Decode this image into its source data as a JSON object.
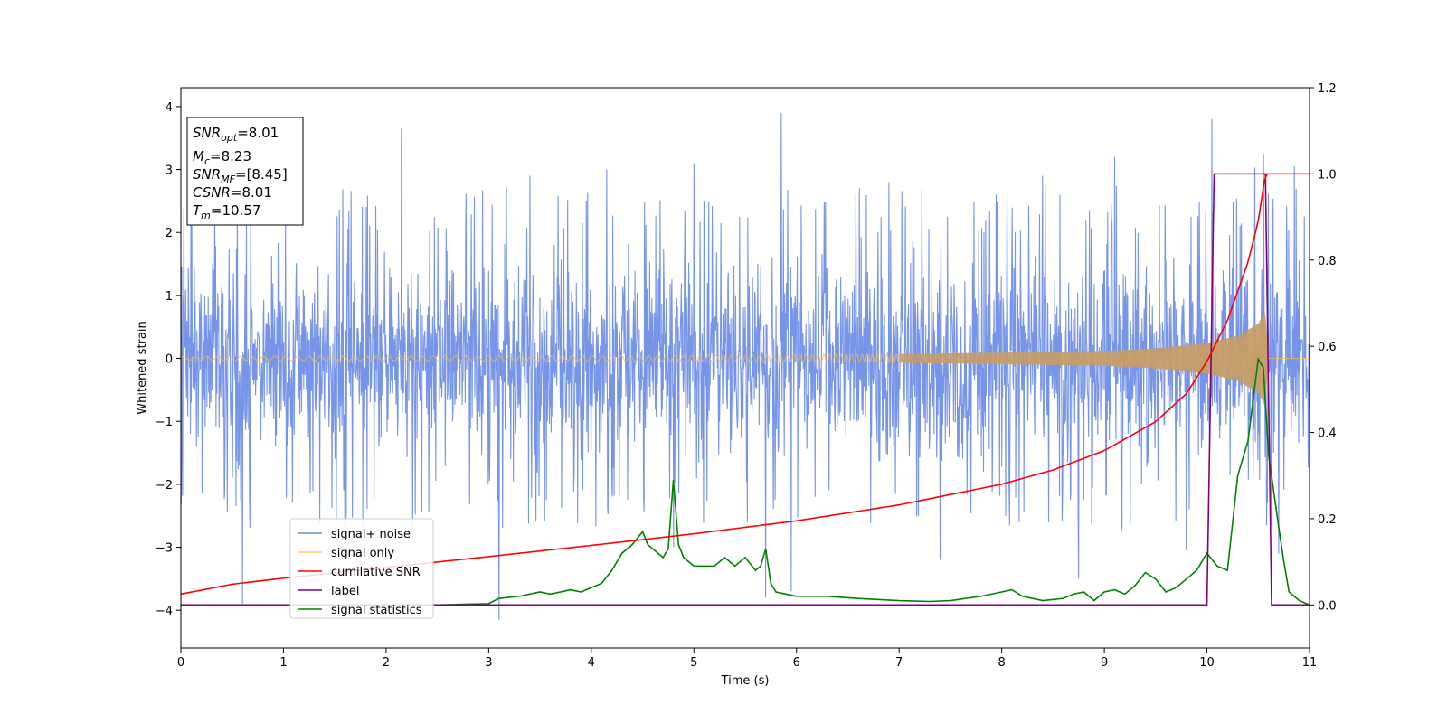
{
  "chart_data": {
    "type": "line",
    "title": "",
    "xlabel": "Time (s)",
    "ylabel": "Whitened strain",
    "xlim": [
      0,
      11
    ],
    "ylim": [
      -4.6,
      4.3
    ],
    "y2lim": [
      -0.1,
      1.2
    ],
    "x_ticks": [
      "0",
      "1",
      "2",
      "3",
      "4",
      "5",
      "6",
      "7",
      "8",
      "9",
      "10",
      "11"
    ],
    "y_ticks": [
      "−4",
      "−3",
      "−2",
      "−1",
      "0",
      "1",
      "2",
      "3",
      "4"
    ],
    "y2_ticks": [
      "0.0",
      "0.2",
      "0.4",
      "0.6",
      "0.8",
      "1.0",
      "1.2"
    ],
    "grid": false,
    "legend_position": "lower-left",
    "annotation": {
      "snr_opt": {
        "base": "SNR",
        "sub": "opt",
        "value": "=8.01"
      },
      "mc": {
        "base": "M",
        "sub": "c",
        "value": "=8.23"
      },
      "snr_mf": {
        "base": "SNR",
        "sub": "MF",
        "value": "=[8.45]"
      },
      "csnr": {
        "base": "CSNR",
        "value": "=8.01"
      },
      "tm": {
        "base": "T",
        "sub": "m",
        "value": "=10.57"
      }
    },
    "series": [
      {
        "name": "signal+ noise",
        "axis": "left",
        "color": "#6a8be6",
        "description_points": {
          "band_low": -2.2,
          "band_high": 2.2,
          "spikes_up": [
            [
              0.03,
              2.4
            ],
            [
              0.55,
              2.5
            ],
            [
              2.15,
              3.65
            ],
            [
              3.4,
              2.9
            ],
            [
              4.15,
              3.0
            ],
            [
              5.0,
              3.1
            ],
            [
              5.85,
              3.9
            ],
            [
              6.9,
              2.8
            ],
            [
              8.4,
              2.9
            ],
            [
              9.1,
              3.2
            ],
            [
              10.05,
              3.8
            ],
            [
              10.55,
              3.25
            ],
            [
              10.85,
              3.05
            ]
          ],
          "spikes_down": [
            [
              0.6,
              -3.9
            ],
            [
              1.6,
              -3.5
            ],
            [
              3.1,
              -4.15
            ],
            [
              4.8,
              -3.0
            ],
            [
              5.7,
              -3.8
            ],
            [
              5.95,
              -3.7
            ],
            [
              7.4,
              -3.2
            ],
            [
              8.75,
              -3.5
            ],
            [
              9.8,
              -3.05
            ],
            [
              10.7,
              -3.1
            ]
          ]
        }
      },
      {
        "name": "signal only",
        "axis": "left",
        "color": "#f5b94e",
        "envelope": [
          [
            0,
            0.03
          ],
          [
            5,
            0.05
          ],
          [
            7,
            0.07
          ],
          [
            8,
            0.09
          ],
          [
            9,
            0.12
          ],
          [
            9.5,
            0.16
          ],
          [
            10,
            0.24
          ],
          [
            10.3,
            0.36
          ],
          [
            10.5,
            0.55
          ],
          [
            10.57,
            0.75
          ],
          [
            10.6,
            0
          ],
          [
            11,
            0
          ]
        ]
      },
      {
        "name": "cumilative SNR",
        "axis": "right",
        "color": "#ff0000",
        "x": [
          0,
          0.5,
          1,
          2,
          3,
          4,
          5,
          6,
          7,
          8,
          8.5,
          9,
          9.5,
          9.8,
          10,
          10.2,
          10.4,
          10.5,
          10.57,
          11
        ],
        "y": [
          0.025,
          0.048,
          0.062,
          0.087,
          0.112,
          0.138,
          0.165,
          0.195,
          0.232,
          0.28,
          0.313,
          0.358,
          0.425,
          0.49,
          0.565,
          0.66,
          0.795,
          0.89,
          1.0,
          1.0
        ]
      },
      {
        "name": "label",
        "axis": "right",
        "color": "#800080",
        "x": [
          0,
          10.0,
          10.07,
          10.57,
          10.63,
          11
        ],
        "y": [
          0,
          0,
          1,
          1,
          0,
          0
        ]
      },
      {
        "name": "signal statistics",
        "axis": "right",
        "color": "#008000",
        "x": [
          0,
          1,
          2,
          2.5,
          3,
          3.1,
          3.3,
          3.5,
          3.6,
          3.8,
          3.9,
          4.0,
          4.1,
          4.2,
          4.3,
          4.4,
          4.5,
          4.55,
          4.65,
          4.7,
          4.75,
          4.8,
          4.85,
          4.9,
          5.0,
          5.1,
          5.2,
          5.3,
          5.4,
          5.5,
          5.6,
          5.65,
          5.7,
          5.75,
          5.8,
          6.0,
          6.3,
          6.6,
          7.0,
          7.3,
          7.5,
          7.8,
          8.0,
          8.1,
          8.2,
          8.4,
          8.6,
          8.7,
          8.8,
          8.9,
          9.0,
          9.1,
          9.2,
          9.3,
          9.4,
          9.5,
          9.6,
          9.7,
          9.8,
          9.9,
          10.0,
          10.1,
          10.2,
          10.3,
          10.4,
          10.5,
          10.55,
          10.6,
          10.7,
          10.75,
          10.8,
          10.9,
          11
        ],
        "y": [
          0.0,
          0.0,
          0.0,
          0.0,
          0.003,
          0.015,
          0.02,
          0.03,
          0.025,
          0.035,
          0.03,
          0.04,
          0.05,
          0.08,
          0.12,
          0.14,
          0.17,
          0.14,
          0.12,
          0.11,
          0.13,
          0.29,
          0.14,
          0.11,
          0.09,
          0.09,
          0.09,
          0.11,
          0.09,
          0.11,
          0.08,
          0.09,
          0.13,
          0.05,
          0.03,
          0.02,
          0.02,
          0.015,
          0.01,
          0.008,
          0.01,
          0.02,
          0.03,
          0.035,
          0.02,
          0.01,
          0.015,
          0.025,
          0.03,
          0.01,
          0.03,
          0.035,
          0.025,
          0.045,
          0.075,
          0.06,
          0.03,
          0.04,
          0.06,
          0.08,
          0.12,
          0.09,
          0.08,
          0.3,
          0.38,
          0.57,
          0.55,
          0.35,
          0.18,
          0.1,
          0.03,
          0.01,
          0.0
        ]
      }
    ]
  }
}
